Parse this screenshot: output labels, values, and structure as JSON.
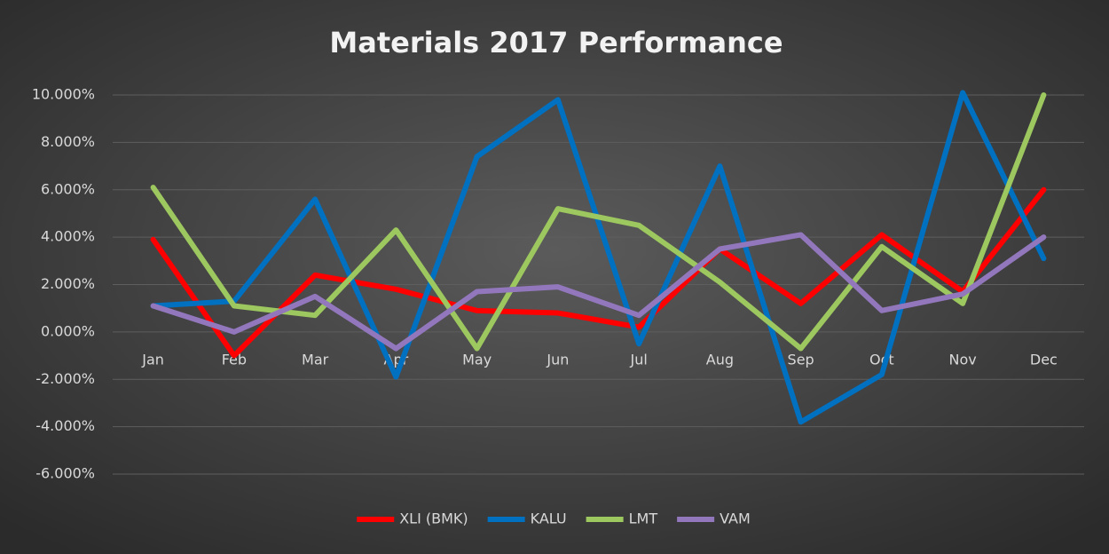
{
  "chart_data": {
    "type": "line",
    "title": "Materials 2017 Performance",
    "categories": [
      "Jan",
      "Feb",
      "Mar",
      "Apr",
      "May",
      "Jun",
      "Jul",
      "Aug",
      "Sep",
      "Oct",
      "Nov",
      "Dec"
    ],
    "series": [
      {
        "name": "XLI (BMK)",
        "color": "#ff0000",
        "values": [
          3.9,
          -1.0,
          2.4,
          1.8,
          0.9,
          0.8,
          0.2,
          3.5,
          1.2,
          4.1,
          1.7,
          6.0
        ]
      },
      {
        "name": "KALU",
        "color": "#0070c0",
        "values": [
          1.1,
          1.3,
          5.6,
          -1.9,
          7.4,
          9.8,
          -0.5,
          7.0,
          -3.8,
          -1.8,
          10.1,
          3.1
        ]
      },
      {
        "name": "LMT",
        "color": "#9dc75f",
        "values": [
          6.1,
          1.1,
          0.7,
          4.3,
          -0.7,
          5.2,
          4.5,
          2.1,
          -0.7,
          3.6,
          1.2,
          10.0
        ]
      },
      {
        "name": "VAM",
        "color": "#9277bd",
        "values": [
          1.1,
          0.0,
          1.5,
          -0.7,
          1.7,
          1.9,
          0.7,
          3.5,
          4.1,
          0.9,
          1.6,
          4.0
        ]
      }
    ],
    "ylim": [
      -6,
      10
    ],
    "yticks": [
      {
        "value": -6,
        "label": "-6.000%"
      },
      {
        "value": -4,
        "label": "-4.000%"
      },
      {
        "value": -2,
        "label": "-2.000%"
      },
      {
        "value": 0,
        "label": "0.000%"
      },
      {
        "value": 2,
        "label": "2.000%"
      },
      {
        "value": 4,
        "label": "4.000%"
      },
      {
        "value": 6,
        "label": "6.000%"
      },
      {
        "value": 8,
        "label": "8.000%"
      },
      {
        "value": 10,
        "label": "10.000%"
      }
    ],
    "grid": true,
    "legend": "bottom"
  }
}
